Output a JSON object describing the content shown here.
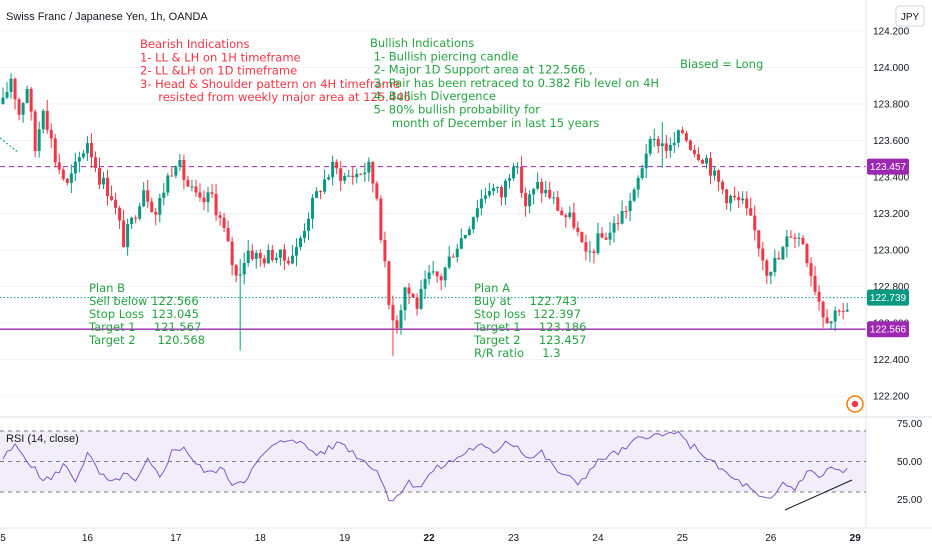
{
  "header": {
    "symbol_title": "Swiss Franc / Japanese Yen, 1h, OANDA",
    "currency_badge": "JPY"
  },
  "chart_data": {
    "type": "candlestick",
    "price_axis": {
      "range": [
        122.08,
        124.3
      ],
      "ticks": [
        {
          "value": 124.2,
          "label": "124.200"
        },
        {
          "value": 124.0,
          "label": "124.000"
        },
        {
          "value": 123.8,
          "label": "123.800"
        },
        {
          "value": 123.6,
          "label": "123.600"
        },
        {
          "value": 123.4,
          "label": "123.400"
        },
        {
          "value": 123.2,
          "label": "123.200"
        },
        {
          "value": 123.0,
          "label": "123.000"
        },
        {
          "value": 122.8,
          "label": "122.800"
        },
        {
          "value": 122.6,
          "label": "122.600"
        },
        {
          "value": 122.4,
          "label": "122.400"
        },
        {
          "value": 122.2,
          "label": "122.200"
        }
      ]
    },
    "time_axis": {
      "labels": [
        {
          "label": "5",
          "bar": 0
        },
        {
          "label": "16",
          "bar": 21
        },
        {
          "label": "17",
          "bar": 43
        },
        {
          "label": "18",
          "bar": 64
        },
        {
          "label": "19",
          "bar": 85
        },
        {
          "label": "22",
          "bar": 106,
          "bold": true
        },
        {
          "label": "23",
          "bar": 127
        },
        {
          "label": "24",
          "bar": 148
        },
        {
          "label": "25",
          "bar": 169
        },
        {
          "label": "26",
          "bar": 191
        },
        {
          "label": "29",
          "bar": 212,
          "bold": true
        }
      ]
    },
    "price_tags": [
      {
        "value": 123.457,
        "label": "123.457",
        "color": "#9c27b0"
      },
      {
        "value": 122.739,
        "label": "122.739",
        "color": "#089981"
      },
      {
        "value": 122.566,
        "label": "122.566",
        "color": "#9c27b0"
      }
    ],
    "horizontal_lines": [
      {
        "value": 123.457,
        "style": "dashed",
        "color": "#9c27b0"
      },
      {
        "value": 122.739,
        "style": "dotted",
        "color": "#089981"
      },
      {
        "value": 122.566,
        "style": "solid",
        "color": "#9c27b0"
      }
    ],
    "colors": {
      "up": "#089981",
      "down": "#f23645"
    },
    "anchors": [
      [
        0,
        123.8
      ],
      [
        2,
        123.95
      ],
      [
        4,
        123.75
      ],
      [
        6,
        123.9
      ],
      [
        8,
        123.55
      ],
      [
        10,
        123.8
      ],
      [
        13,
        123.5
      ],
      [
        16,
        123.35
      ],
      [
        18,
        123.45
      ],
      [
        21,
        123.6
      ],
      [
        24,
        123.4
      ],
      [
        27,
        123.3
      ],
      [
        30,
        123.05
      ],
      [
        32,
        123.15
      ],
      [
        35,
        123.35
      ],
      [
        38,
        123.2
      ],
      [
        41,
        123.4
      ],
      [
        43,
        123.5
      ],
      [
        46,
        123.35
      ],
      [
        49,
        123.25
      ],
      [
        52,
        123.3
      ],
      [
        55,
        123.1
      ],
      [
        58,
        122.85
      ],
      [
        61,
        123.0
      ],
      [
        64,
        122.95
      ],
      [
        67,
        122.98
      ],
      [
        70,
        122.95
      ],
      [
        73,
        123.0
      ],
      [
        76,
        123.2
      ],
      [
        79,
        123.35
      ],
      [
        82,
        123.45
      ],
      [
        85,
        123.4
      ],
      [
        88,
        123.42
      ],
      [
        91,
        123.45
      ],
      [
        93,
        123.3
      ],
      [
        96,
        122.7
      ],
      [
        98,
        122.6
      ],
      [
        100,
        122.8
      ],
      [
        103,
        122.7
      ],
      [
        106,
        122.85
      ],
      [
        109,
        122.85
      ],
      [
        112,
        123.0
      ],
      [
        115,
        123.1
      ],
      [
        118,
        123.25
      ],
      [
        121,
        123.35
      ],
      [
        124,
        123.3
      ],
      [
        127,
        123.5
      ],
      [
        130,
        123.25
      ],
      [
        133,
        123.35
      ],
      [
        136,
        123.3
      ],
      [
        139,
        123.2
      ],
      [
        142,
        123.15
      ],
      [
        145,
        122.95
      ],
      [
        148,
        123.05
      ],
      [
        151,
        123.1
      ],
      [
        154,
        123.2
      ],
      [
        157,
        123.3
      ],
      [
        160,
        123.55
      ],
      [
        163,
        123.6
      ],
      [
        166,
        123.55
      ],
      [
        169,
        123.65
      ],
      [
        172,
        123.55
      ],
      [
        175,
        123.5
      ],
      [
        177,
        123.4
      ],
      [
        180,
        123.3
      ],
      [
        184,
        123.25
      ],
      [
        187,
        123.1
      ],
      [
        190,
        122.9
      ],
      [
        193,
        122.95
      ],
      [
        196,
        123.1
      ],
      [
        199,
        123.05
      ],
      [
        202,
        122.8
      ],
      [
        204,
        122.66
      ],
      [
        206,
        122.62
      ],
      [
        208,
        122.7
      ],
      [
        210,
        122.65
      ]
    ],
    "wicks": [
      {
        "bar": 59,
        "high": 122.95,
        "low": 122.45
      },
      {
        "bar": 97,
        "high": 122.75,
        "low": 122.42
      },
      {
        "bar": 164,
        "high": 123.7,
        "low": 123.45
      }
    ],
    "rsi": {
      "label": "RSI (14, close)",
      "range": [
        20,
        78
      ],
      "levels": {
        "upper": 70,
        "middle": 50,
        "lower": 30
      },
      "ticks": [
        {
          "value": 75,
          "label": "75.00"
        },
        {
          "value": 50,
          "label": "50.00"
        },
        {
          "value": 25,
          "label": "25.00"
        }
      ],
      "anchors": [
        [
          0,
          52
        ],
        [
          3,
          60
        ],
        [
          6,
          52
        ],
        [
          9,
          40
        ],
        [
          12,
          38
        ],
        [
          15,
          48
        ],
        [
          18,
          38
        ],
        [
          21,
          55
        ],
        [
          24,
          42
        ],
        [
          27,
          35
        ],
        [
          30,
          42
        ],
        [
          33,
          36
        ],
        [
          36,
          50
        ],
        [
          39,
          40
        ],
        [
          42,
          56
        ],
        [
          45,
          60
        ],
        [
          48,
          48
        ],
        [
          51,
          42
        ],
        [
          54,
          46
        ],
        [
          57,
          36
        ],
        [
          60,
          38
        ],
        [
          63,
          48
        ],
        [
          66,
          58
        ],
        [
          69,
          62
        ],
        [
          72,
          66
        ],
        [
          75,
          60
        ],
        [
          78,
          55
        ],
        [
          81,
          58
        ],
        [
          84,
          63
        ],
        [
          87,
          56
        ],
        [
          90,
          50
        ],
        [
          93,
          45
        ],
        [
          96,
          25
        ],
        [
          98,
          28
        ],
        [
          101,
          36
        ],
        [
          104,
          34
        ],
        [
          107,
          44
        ],
        [
          110,
          48
        ],
        [
          113,
          52
        ],
        [
          116,
          58
        ],
        [
          119,
          60
        ],
        [
          122,
          55
        ],
        [
          125,
          64
        ],
        [
          128,
          60
        ],
        [
          131,
          52
        ],
        [
          134,
          56
        ],
        [
          137,
          46
        ],
        [
          140,
          40
        ],
        [
          143,
          36
        ],
        [
          146,
          44
        ],
        [
          149,
          52
        ],
        [
          152,
          55
        ],
        [
          155,
          58
        ],
        [
          158,
          65
        ],
        [
          161,
          68
        ],
        [
          164,
          66
        ],
        [
          167,
          70
        ],
        [
          170,
          62
        ],
        [
          173,
          58
        ],
        [
          176,
          50
        ],
        [
          179,
          44
        ],
        [
          182,
          38
        ],
        [
          185,
          34
        ],
        [
          188,
          26
        ],
        [
          191,
          24
        ],
        [
          194,
          36
        ],
        [
          197,
          32
        ],
        [
          200,
          44
        ],
        [
          203,
          40
        ],
        [
          206,
          46
        ],
        [
          209,
          43
        ],
        [
          210,
          44
        ]
      ]
    }
  },
  "annotations": {
    "bearish": {
      "title": "Bearish Indications",
      "items": [
        "1- LL & LH on 1H timeframe",
        "2- LL &LH on 1D timeframe",
        "3- Head & Shoulder pattern on 4H timeframe",
        "     resisted from weekly major area at 125.446"
      ]
    },
    "bullish": {
      "title": "Bullish Indications",
      "items": [
        " 1- Bullish piercing candle",
        " 2- Major 1D Support area at 122.566 ,",
        " 3- Pair has been retraced to 0.382 Fib level on 4H",
        " 4- Bullish Divergence",
        " 5- 80% bullish probability for",
        "      month of December in last 15 years"
      ]
    },
    "bias": "Biased = Long",
    "plan_b": {
      "lines": [
        "Plan B",
        "Sell below 122.566",
        "Stop Loss  123.045",
        "Target 1     121.567",
        "Target 2      120.568"
      ]
    },
    "plan_a": {
      "lines": [
        "Plan A",
        "Buy at     122.743",
        "Stop loss  122.397",
        "Target 1     123.186",
        "Target 2     123.457",
        "R/R ratio     1.3"
      ]
    }
  }
}
